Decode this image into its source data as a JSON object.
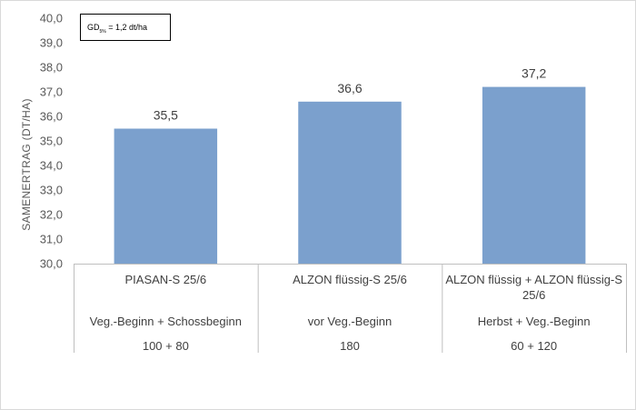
{
  "chart_data": {
    "type": "bar",
    "title": "",
    "ylabel": "SAMENERTRAG (DT/HA)",
    "ylim": [
      30.0,
      40.0
    ],
    "ystep": 1.0,
    "yticks": [
      "30,0",
      "31,0",
      "32,0",
      "33,0",
      "34,0",
      "35,0",
      "36,0",
      "37,0",
      "38,0",
      "39,0",
      "40,0"
    ],
    "values": [
      35.5,
      36.6,
      37.2
    ],
    "value_labels": [
      "35,5",
      "36,6",
      "37,2"
    ],
    "categories": [
      {
        "name": [
          "PIASAN-S 25/6"
        ],
        "timing": "Veg.-Beginn  + Schossbeginn",
        "amount": "100 + 80"
      },
      {
        "name": [
          "ALZON flüssig-S 25/6"
        ],
        "timing": "vor Veg.-Beginn",
        "amount": "180"
      },
      {
        "name": [
          "ALZON flüssig + ALZON flüssig-S",
          "25/6"
        ],
        "timing": "Herbst + Veg.-Beginn",
        "amount": "60 + 120"
      }
    ],
    "bar_color": "#7ba0cd",
    "grid": false
  },
  "annotation": {
    "prefix": "GD",
    "subscript": "5%",
    "suffix": " = 1,2 dt/ha"
  }
}
